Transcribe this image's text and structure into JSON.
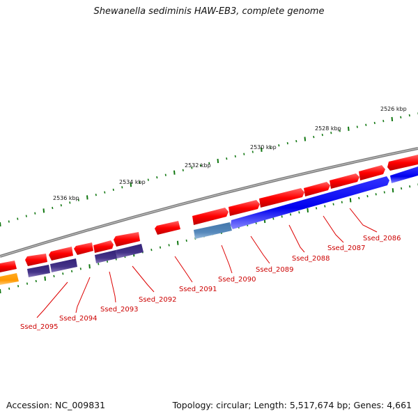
{
  "title": "Shewanella sediminis HAW-EB3, complete genome",
  "footer": {
    "accession": "Accession: NC_009831",
    "summary": "Topology: circular; Length: 5,517,674 bp; Genes: 4,661"
  },
  "colors": {
    "forward_gene": "#ff0000",
    "reverse_gene": "#0000ee",
    "reverse_gene_alt": "#5577aa",
    "purple_gene": "#443388",
    "orange_gene": "#ff9900",
    "backbone": "#888888",
    "tick": "#117711",
    "label": "#cc0000"
  },
  "scale_labels": [
    "2526 kbp",
    "2528 kbp",
    "2530 kbp",
    "2532 kbp",
    "2534 kbp",
    "2536 kbp"
  ],
  "gene_labels": [
    "Ssed_2086",
    "Ssed_2087",
    "Ssed_2088",
    "Ssed_2089",
    "Ssed_2090",
    "Ssed_2091",
    "Ssed_2092",
    "Ssed_2093",
    "Ssed_2094",
    "Ssed_2095"
  ]
}
